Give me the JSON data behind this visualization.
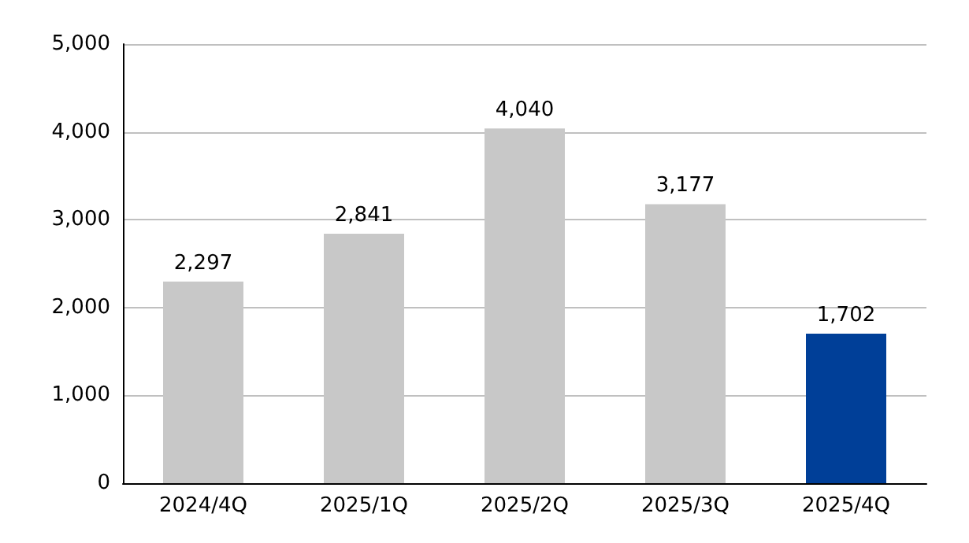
{
  "chart_data": {
    "type": "bar",
    "categories": [
      "2024/4Q",
      "2025/1Q",
      "2025/2Q",
      "2025/3Q",
      "2025/4Q"
    ],
    "values": [
      2297,
      2841,
      4040,
      3177,
      1702
    ],
    "value_labels": [
      "2,297",
      "2,841",
      "4,040",
      "3,177",
      "1,702"
    ],
    "colors": [
      "#c8c8c8",
      "#c8c8c8",
      "#c8c8c8",
      "#c8c8c8",
      "#003f98"
    ],
    "ylim": [
      0,
      5000
    ],
    "yticks": [
      0,
      {
        "value": 1000,
        "label": "1,000"
      },
      {
        "value": 2000,
        "label": "2,000"
      },
      {
        "value": 3000,
        "label": "3,000"
      },
      {
        "value": 4000,
        "label": "4,000"
      },
      {
        "value": 5000,
        "label": "5,000"
      }
    ],
    "grid": "y"
  }
}
